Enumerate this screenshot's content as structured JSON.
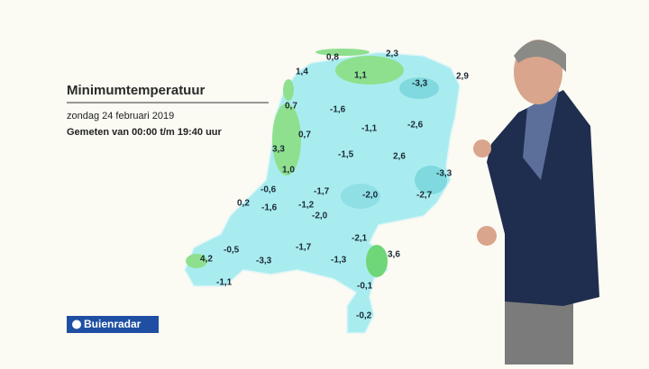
{
  "header": {
    "title": "Minimumtemperatuur",
    "date": "zondag 24 februari 2019",
    "measured": "Gemeten van 00:00 t/m 19:40 uur"
  },
  "logo": "Buienradar",
  "stations": [
    "0,8",
    "2,3",
    "1,4",
    "1,1",
    "-3,3",
    "2,9",
    "0,7",
    "-1,6",
    "0,7",
    "-1,1",
    "-2,6",
    "3,3",
    "-1,5",
    "2,6",
    "1,0",
    "-3,3",
    "-0,6",
    "-1,7",
    "-2,0",
    "-2,7",
    "0,2",
    "-1,6",
    "-1,2",
    "-2,0",
    "-0,5",
    "-1,7",
    "-2,1",
    "4,2",
    "-3,3",
    "-1,3",
    "3,6",
    "-1,1",
    "-0,1",
    "-0,2"
  ]
}
